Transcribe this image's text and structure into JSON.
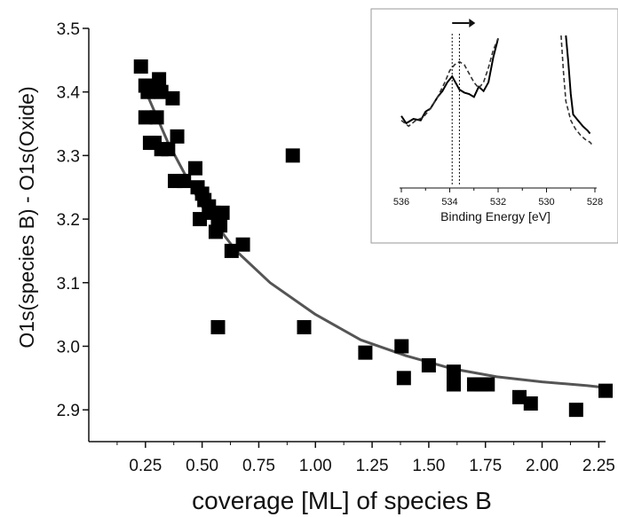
{
  "chart_data": [
    {
      "type": "scatter",
      "xlabel": "coverage [ML] of species B",
      "ylabel": "O1s(species B) - O1s(Oxide)",
      "xlim": [
        0.0,
        2.28
      ],
      "ylim": [
        2.85,
        3.5
      ],
      "x_ticks": [
        "0.25",
        "0.50",
        "0.75",
        "1.00",
        "1.25",
        "1.50",
        "1.75",
        "2.00",
        "2.25"
      ],
      "y_ticks": [
        "2.9",
        "3.0",
        "3.1",
        "3.2",
        "3.3",
        "3.4",
        "3.5"
      ],
      "grid": false,
      "series": [
        {
          "marker": "square",
          "color": "#000000",
          "x": [
            0.23,
            0.25,
            0.26,
            0.25,
            0.31,
            0.32,
            0.3,
            0.37,
            0.27,
            0.29,
            0.32,
            0.35,
            0.39,
            0.38,
            0.42,
            0.48,
            0.47,
            0.5,
            0.51,
            0.53,
            0.49,
            0.55,
            0.57,
            0.58,
            0.59,
            0.56,
            0.63,
            0.68,
            0.57,
            0.9,
            0.95,
            1.22,
            1.38,
            1.39,
            1.5,
            1.61,
            1.61,
            1.7,
            1.73,
            1.76,
            1.9,
            1.95,
            2.15,
            2.28
          ],
          "y": [
            3.44,
            3.41,
            3.4,
            3.36,
            3.42,
            3.4,
            3.36,
            3.39,
            3.32,
            3.32,
            3.31,
            3.31,
            3.33,
            3.26,
            3.26,
            3.25,
            3.28,
            3.24,
            3.23,
            3.22,
            3.2,
            3.21,
            3.2,
            3.19,
            3.21,
            3.18,
            3.15,
            3.16,
            3.03,
            3.3,
            3.03,
            2.99,
            3.0,
            2.95,
            2.97,
            2.96,
            2.94,
            2.94,
            2.94,
            2.94,
            2.92,
            2.91,
            2.9,
            2.93
          ]
        },
        {
          "type": "line",
          "style": "fit",
          "color": "#555555",
          "x": [
            0.24,
            0.35,
            0.5,
            0.65,
            0.8,
            1.0,
            1.2,
            1.4,
            1.6,
            1.8,
            2.0,
            2.2,
            2.28
          ],
          "y": [
            3.41,
            3.32,
            3.22,
            3.15,
            3.1,
            3.05,
            3.01,
            2.985,
            2.965,
            2.952,
            2.944,
            2.938,
            2.935
          ]
        }
      ]
    },
    {
      "type": "line",
      "role": "inset",
      "xlabel": "Binding Energy [eV]",
      "xlim": [
        536,
        528
      ],
      "x_ticks": [
        "536",
        "534",
        "532",
        "530",
        "528"
      ],
      "markers": {
        "dotted_lines_x": [
          533.9,
          533.6
        ],
        "arrow": "right"
      },
      "series": [
        {
          "style": "solid",
          "color": "#000000",
          "x": [
            536.0,
            535.8,
            535.5,
            535.2,
            535.0,
            534.8,
            534.5,
            534.3,
            534.1,
            533.9,
            533.7,
            533.6,
            533.4,
            533.2,
            533.0,
            532.8,
            532.6,
            532.4,
            532.2,
            532.0
          ],
          "y": [
            0.45,
            0.4,
            0.43,
            0.42,
            0.48,
            0.5,
            0.58,
            0.62,
            0.68,
            0.72,
            0.66,
            0.63,
            0.61,
            0.6,
            0.58,
            0.65,
            0.62,
            0.68,
            0.85,
            0.98
          ]
        },
        {
          "style": "solid",
          "color": "#000000",
          "x": [
            529.2,
            529.1,
            529.0,
            528.9,
            528.7,
            528.5,
            528.3,
            528.2
          ],
          "y": [
            1.0,
            0.82,
            0.6,
            0.46,
            0.42,
            0.38,
            0.35,
            0.33
          ]
        },
        {
          "style": "dashed",
          "color": "#333333",
          "x": [
            536.0,
            535.7,
            535.4,
            535.1,
            534.8,
            534.5,
            534.2,
            534.0,
            533.8,
            533.6,
            533.4,
            533.2,
            533.0,
            532.8,
            532.6,
            532.4,
            532.2,
            532.0
          ],
          "y": [
            0.42,
            0.38,
            0.42,
            0.44,
            0.5,
            0.58,
            0.68,
            0.76,
            0.8,
            0.82,
            0.8,
            0.74,
            0.68,
            0.64,
            0.68,
            0.78,
            0.9,
            0.98
          ],
          "name": ""
        },
        {
          "style": "dashed",
          "color": "#333333",
          "x": [
            529.4,
            529.3,
            529.2,
            529.0,
            528.8,
            528.6,
            528.4,
            528.2,
            528.1
          ],
          "y": [
            1.0,
            0.75,
            0.55,
            0.42,
            0.36,
            0.32,
            0.29,
            0.27,
            0.25
          ]
        }
      ]
    }
  ]
}
